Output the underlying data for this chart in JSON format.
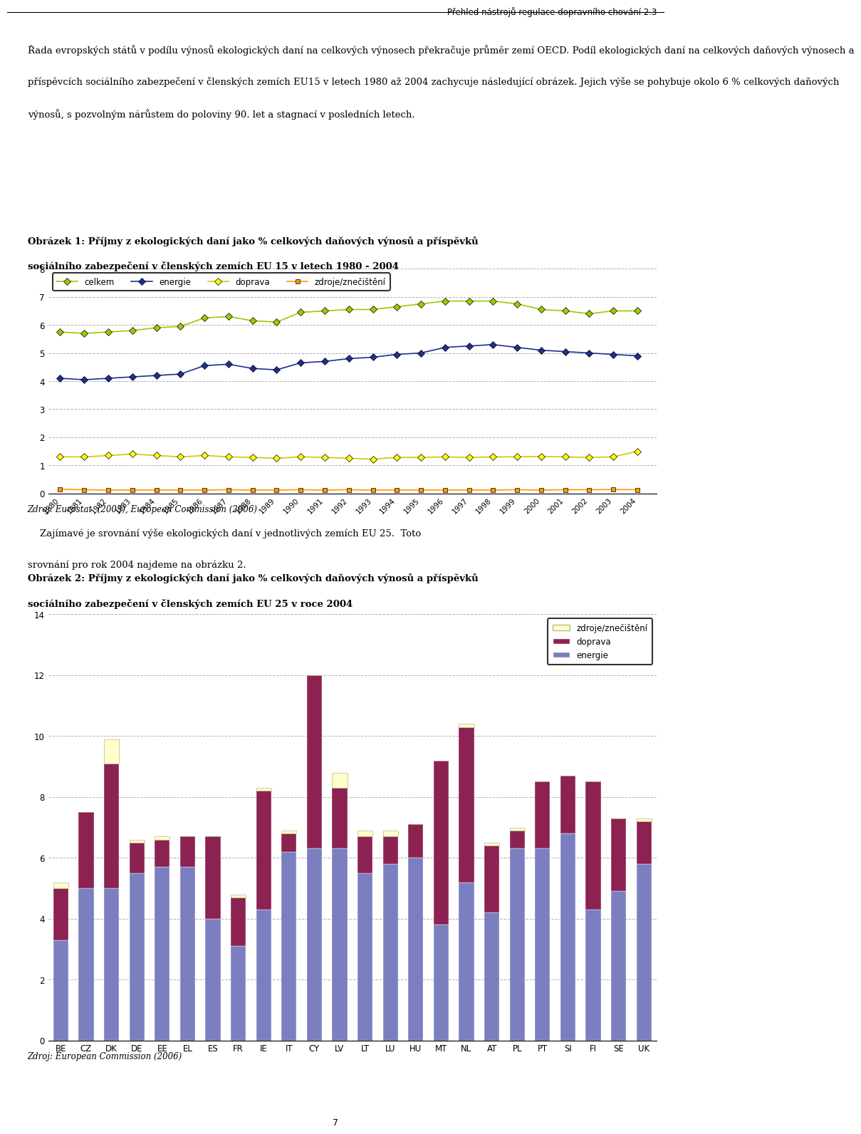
{
  "header_text": "Přehled nástrojů regulace dopravního chování 2.3",
  "para1_lines": [
    "Řada evropských států v podílu výnosů ekologických daní na celkových výnosech překračuje průměr zemí OECD. Podíl ekologických daní na celkových daňových výnosech a",
    "příspěvcích sociálního zabezpečení v členských zemích EU15 v letech 1980 až 2004 zachycuje následující obrázek. Jejich výše se pohybuje okolo 6 % celkových daňových",
    "výnosů, s pozvolným nárůstem do poloviny 90. let a stagnací v posledních letech."
  ],
  "chart1_title_line1": "Obrázek 1: Příjmy z ekologických daní jako % celkových daňových výnosů a příspěvků",
  "chart1_title_line2": "sociálního zabezpečení v členských zemích EU 15 v letech 1980 - 2004",
  "chart1_years": [
    1980,
    1981,
    1982,
    1983,
    1984,
    1985,
    1986,
    1987,
    1988,
    1989,
    1990,
    1991,
    1992,
    1993,
    1994,
    1995,
    1996,
    1997,
    1998,
    1999,
    2000,
    2001,
    2002,
    2003,
    2004
  ],
  "chart1_energie": [
    4.1,
    4.05,
    4.1,
    4.15,
    4.2,
    4.25,
    4.55,
    4.6,
    4.45,
    4.4,
    4.65,
    4.7,
    4.8,
    4.85,
    4.95,
    5.0,
    5.2,
    5.25,
    5.3,
    5.2,
    5.1,
    5.05,
    5.0,
    4.95,
    4.9
  ],
  "chart1_zdroje": [
    0.15,
    0.13,
    0.12,
    0.12,
    0.12,
    0.12,
    0.12,
    0.13,
    0.12,
    0.12,
    0.13,
    0.12,
    0.13,
    0.12,
    0.12,
    0.12,
    0.12,
    0.12,
    0.12,
    0.13,
    0.12,
    0.13,
    0.13,
    0.14,
    0.13
  ],
  "chart1_doprava": [
    1.3,
    1.3,
    1.35,
    1.4,
    1.35,
    1.3,
    1.35,
    1.3,
    1.28,
    1.25,
    1.3,
    1.28,
    1.25,
    1.22,
    1.28,
    1.28,
    1.3,
    1.28,
    1.3,
    1.3,
    1.32,
    1.3,
    1.28,
    1.3,
    1.5
  ],
  "chart1_celkem": [
    5.75,
    5.7,
    5.75,
    5.8,
    5.9,
    5.95,
    6.25,
    6.3,
    6.15,
    6.1,
    6.45,
    6.5,
    6.55,
    6.55,
    6.65,
    6.75,
    6.85,
    6.85,
    6.85,
    6.75,
    6.55,
    6.5,
    6.4,
    6.5,
    6.5
  ],
  "source1": "Zdroj: Eurostat  (2003), European Commission (2006)",
  "para2_line1": "    Zajímavé je srovnání výše ekologických daní v jednotlivých zemích EU 25.  Toto",
  "para2_line2": "srovnání pro rok 2004 najdeme na obrázku 2.",
  "chart2_title_line1": "Obrázek 2: Příjmy z ekologických daní jako % celkových daňových výnosů a příspěvků",
  "chart2_title_line2": "sociálního zabezpečení v členských zemích EU 25 v roce 2004",
  "chart2_countries": [
    "BE",
    "CZ",
    "DK",
    "DE",
    "EE",
    "EL",
    "ES",
    "FR",
    "IE",
    "IT",
    "CY",
    "LV",
    "LT",
    "LU",
    "HU",
    "MT",
    "NL",
    "AT",
    "PL",
    "PT",
    "SI",
    "FI",
    "SE",
    "UK"
  ],
  "chart2_energie": [
    3.3,
    5.0,
    5.0,
    5.5,
    5.7,
    5.7,
    4.0,
    3.1,
    4.3,
    6.2,
    6.3,
    6.3,
    5.5,
    5.8,
    6.0,
    3.8,
    5.2,
    4.2,
    6.3,
    6.3,
    6.8,
    4.3,
    4.9,
    5.8
  ],
  "chart2_doprava": [
    1.7,
    2.5,
    4.1,
    1.0,
    0.9,
    1.0,
    2.7,
    1.6,
    3.9,
    0.6,
    5.7,
    2.0,
    1.2,
    0.9,
    1.1,
    5.4,
    5.1,
    2.2,
    0.6,
    2.2,
    1.9,
    4.2,
    2.4,
    1.4
  ],
  "chart2_zdroje": [
    0.2,
    0.0,
    0.8,
    0.1,
    0.1,
    0.0,
    0.0,
    0.1,
    0.1,
    0.1,
    0.0,
    0.5,
    0.2,
    0.2,
    0.0,
    0.0,
    0.1,
    0.1,
    0.1,
    0.0,
    0.0,
    0.0,
    0.0,
    0.1
  ],
  "source2": "Zdroj: European Commission (2006)",
  "footer": "7",
  "color_energie_bar": "#7B7FBF",
  "color_doprava_bar": "#8B2252",
  "color_zdroje_bar": "#FFFFCC",
  "color_energie_line": "#1F2F8F",
  "color_zdroje_line": "#FF9900",
  "color_doprava_line": "#FFFF00",
  "color_celkem_line": "#99CC00"
}
